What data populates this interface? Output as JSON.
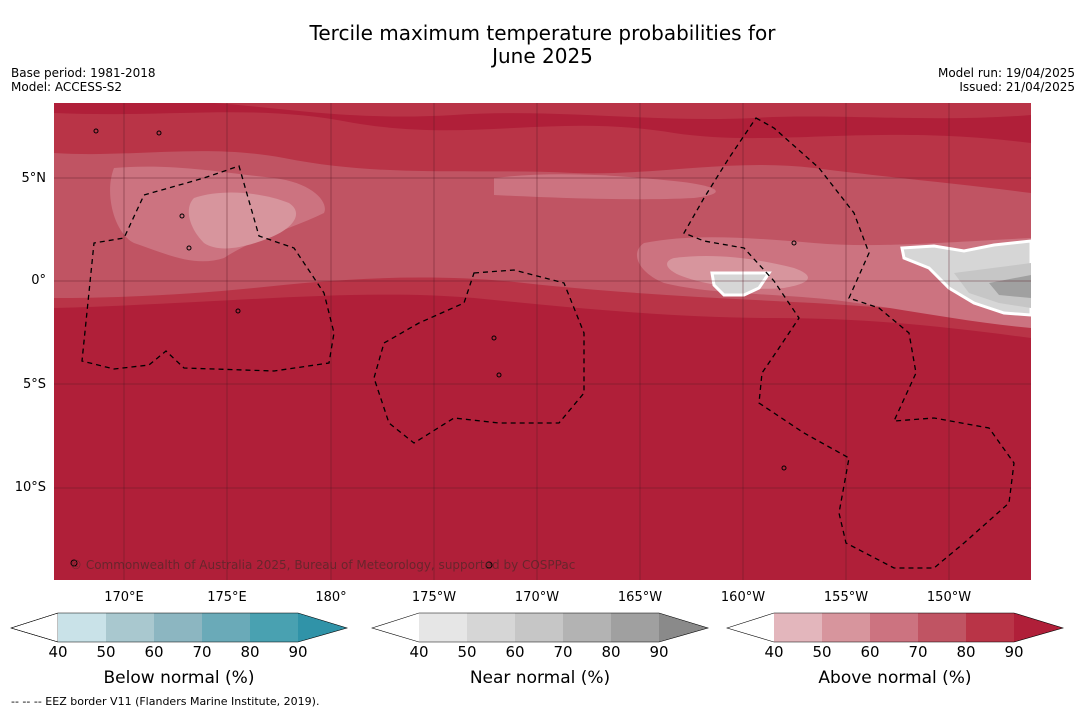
{
  "title_line1": "Tercile maximum temperature probabilities for",
  "title_line2": "June 2025",
  "base_period": "Base period: 1981-2018",
  "model": "Model: ACCESS-S2",
  "model_run": "Model run: 19/04/2025",
  "issued": "Issued: 21/04/2025",
  "copyright": "© Commonwealth of Australia 2025, Bureau of Meteorology, supported by COSPPac",
  "footnote": "--  --  -- EEZ border V11 (Flanders Marine Institute, 2019).",
  "lat_labels": [
    "5°N",
    "0°",
    "5°S",
    "10°S"
  ],
  "lon_labels": [
    "170°E",
    "175°E",
    "180°",
    "175°W",
    "170°W",
    "165°W",
    "160°W",
    "155°W",
    "150°W"
  ],
  "colorbars": [
    {
      "title": "Below normal (%)",
      "ticks": [
        "40",
        "50",
        "60",
        "70",
        "80",
        "90"
      ],
      "colors": [
        "#ffffff",
        "#c9e2e8",
        "#a9c8cf",
        "#8cb6c1",
        "#6aaab8",
        "#49a1b1",
        "#3093a8"
      ]
    },
    {
      "title": "Near normal (%)",
      "ticks": [
        "40",
        "50",
        "60",
        "70",
        "80",
        "90"
      ],
      "colors": [
        "#ffffff",
        "#e6e6e6",
        "#d6d6d6",
        "#c6c6c6",
        "#b3b3b3",
        "#a0a0a0",
        "#8a8a8a"
      ]
    },
    {
      "title": "Above normal (%)",
      "ticks": [
        "40",
        "50",
        "60",
        "70",
        "80",
        "90"
      ],
      "colors": [
        "#ffffff",
        "#e3b6bc",
        "#d7959d",
        "#cc7380",
        "#c05463",
        "#b93447",
        "#b01f39"
      ]
    }
  ],
  "map_colors": {
    "above_90": "#b01f39",
    "above_80": "#b93447",
    "above_70": "#c05463",
    "above_60": "#cc7380",
    "above_50": "#d7959d",
    "near_50": "#d6d6d6",
    "near_60": "#c6c6c6",
    "near_80": "#a0a0a0"
  }
}
